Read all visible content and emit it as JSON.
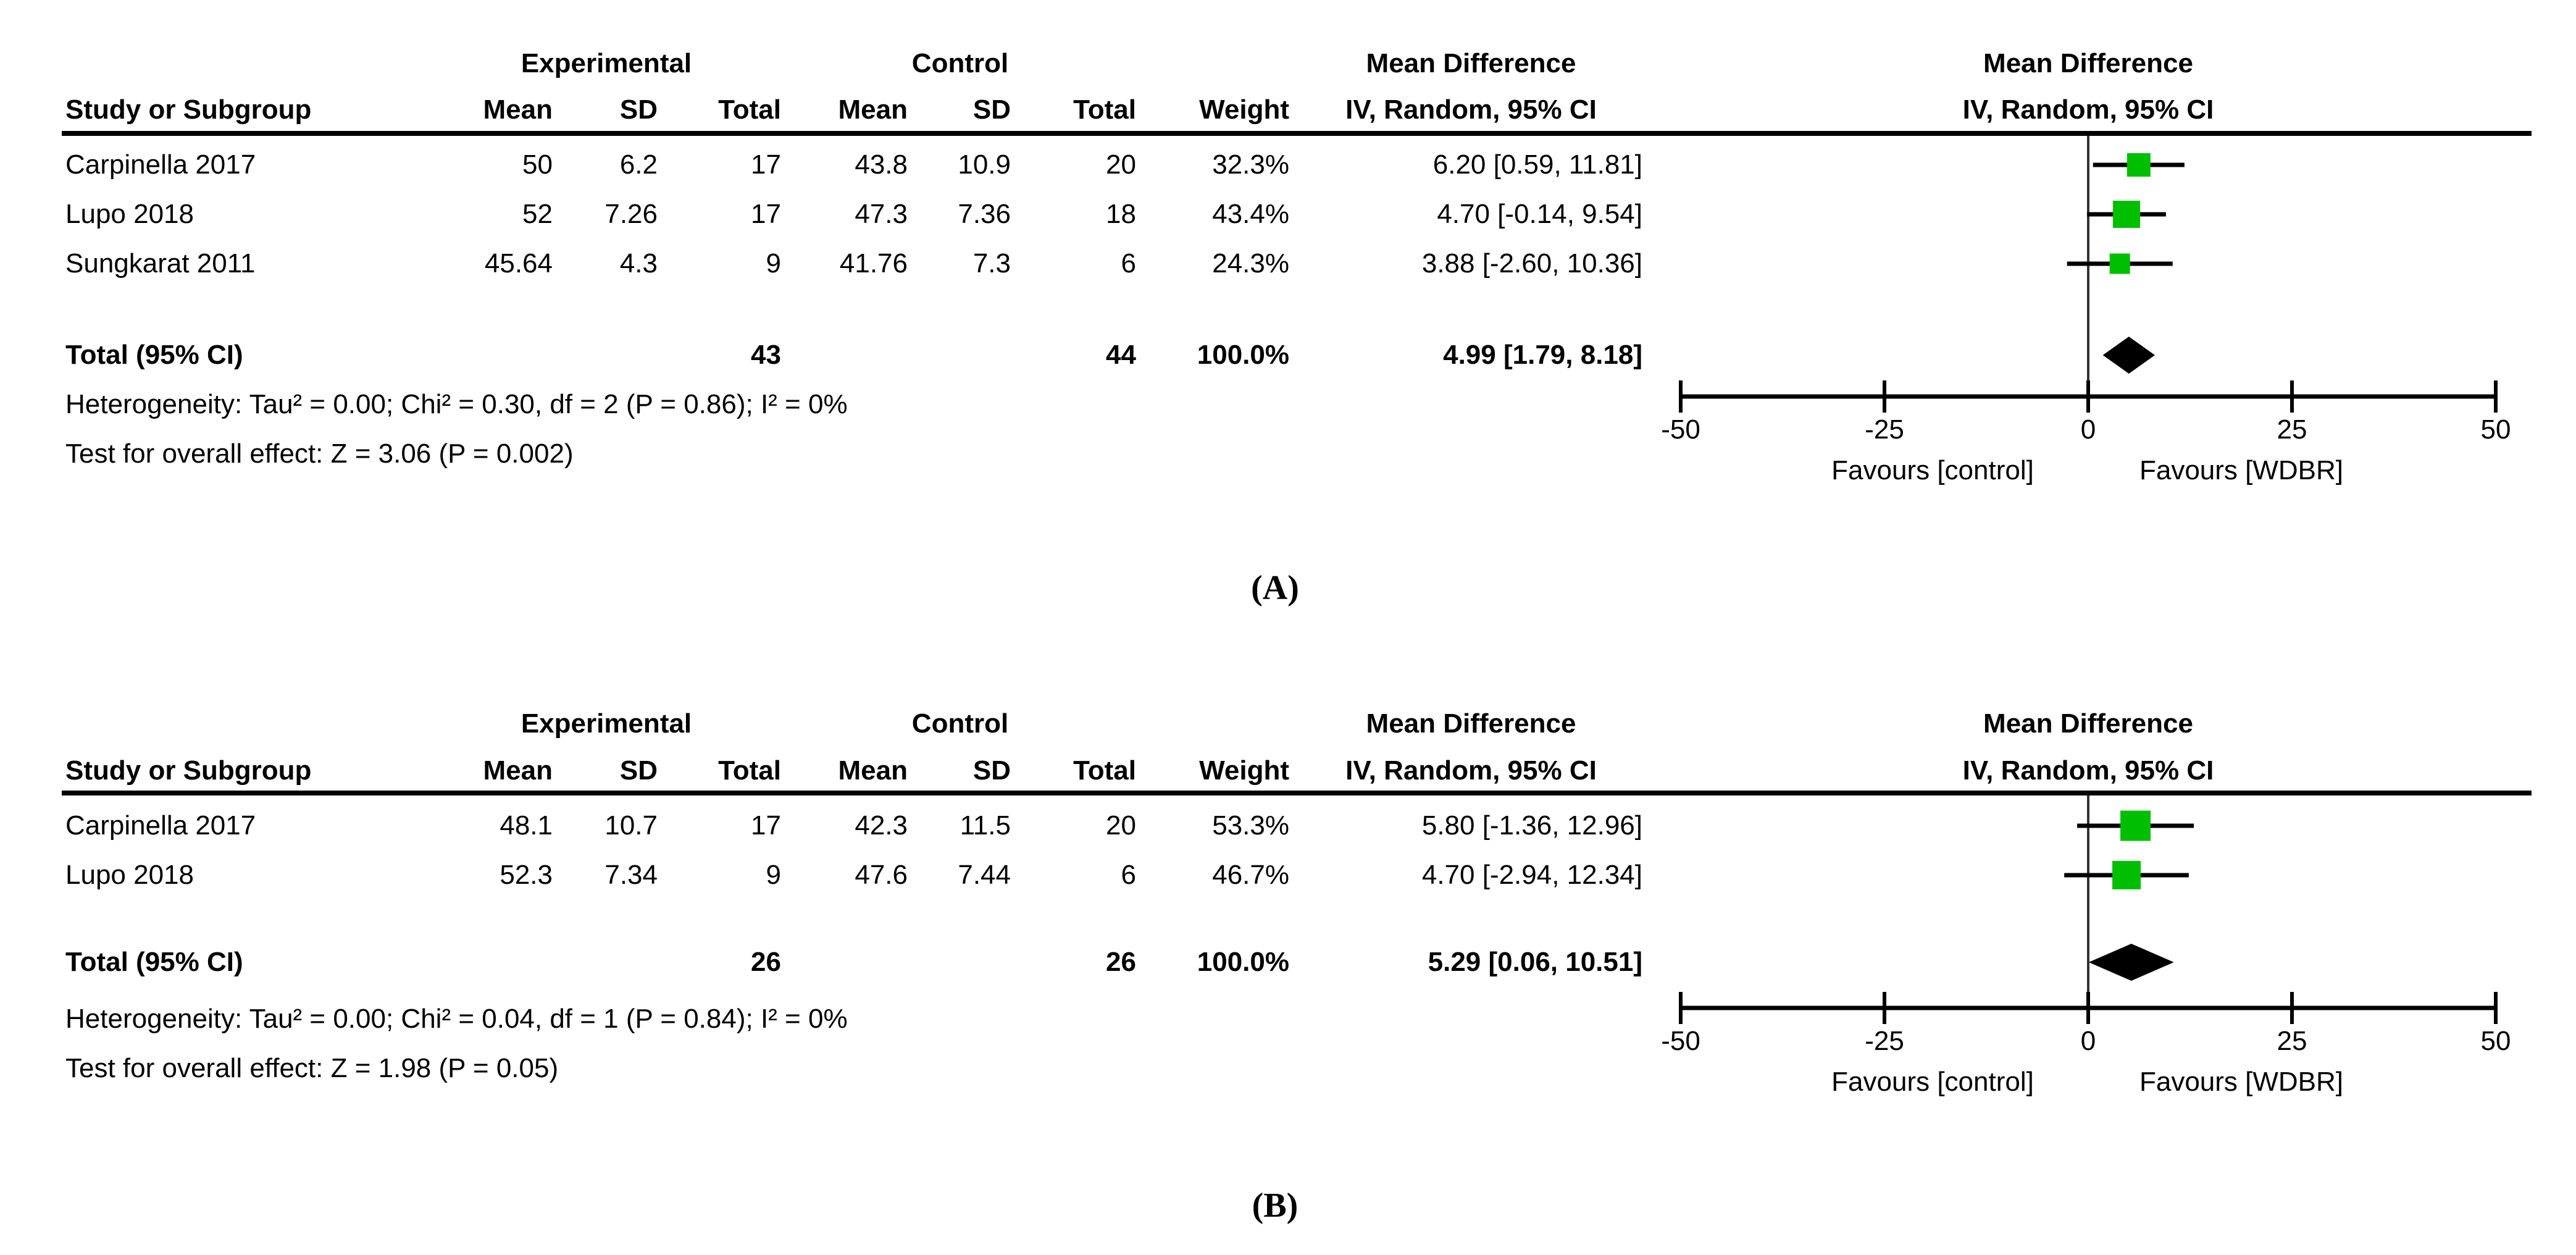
{
  "colors": {
    "square_green": "#00bf00",
    "diamond_black": "#000000",
    "line_black": "#000000",
    "background": "#ffffff"
  },
  "chart_data": [
    {
      "type": "scatter",
      "subtype": "forest_plot",
      "panel_label": "(A)",
      "headers": {
        "group_experimental": "Experimental",
        "group_control": "Control",
        "group_md": "Mean Difference",
        "plot_md": "Mean Difference",
        "study": "Study or Subgroup",
        "mean1": "Mean",
        "sd1": "SD",
        "total1": "Total",
        "mean2": "Mean",
        "sd2": "SD",
        "total2": "Total",
        "weight": "Weight",
        "ci": "IV, Random, 95% CI",
        "plot_ci": "IV, Random, 95% CI"
      },
      "studies": [
        {
          "name": "Carpinella 2017",
          "exp_mean": "50",
          "exp_sd": "6.2",
          "exp_total": "17",
          "ctl_mean": "43.8",
          "ctl_sd": "10.9",
          "ctl_total": "20",
          "weight": "32.3%",
          "weight_value": 32.3,
          "ci_text": "6.20 [0.59, 11.81]",
          "md": 6.2,
          "ci_low": 0.59,
          "ci_high": 11.81
        },
        {
          "name": "Lupo 2018",
          "exp_mean": "52",
          "exp_sd": "7.26",
          "exp_total": "17",
          "ctl_mean": "47.3",
          "ctl_sd": "7.36",
          "ctl_total": "18",
          "weight": "43.4%",
          "weight_value": 43.4,
          "ci_text": "4.70 [-0.14, 9.54]",
          "md": 4.7,
          "ci_low": -0.14,
          "ci_high": 9.54
        },
        {
          "name": "Sungkarat 2011",
          "exp_mean": "45.64",
          "exp_sd": "4.3",
          "exp_total": "9",
          "ctl_mean": "41.76",
          "ctl_sd": "7.3",
          "ctl_total": "6",
          "weight": "24.3%",
          "weight_value": 24.3,
          "ci_text": "3.88 [-2.60, 10.36]",
          "md": 3.88,
          "ci_low": -2.6,
          "ci_high": 10.36
        }
      ],
      "total": {
        "label": "Total (95% CI)",
        "exp_total": "43",
        "ctl_total": "44",
        "weight": "100.0%",
        "ci_text": "4.99 [1.79, 8.18]",
        "md": 4.99,
        "ci_low": 1.79,
        "ci_high": 8.18
      },
      "heterogeneity": "Heterogeneity: Tau² = 0.00; Chi² = 0.30, df = 2 (P = 0.86); I² = 0%",
      "overall_effect": "Test for overall effect: Z = 3.06 (P = 0.002)",
      "axis": {
        "min": -50,
        "max": 50,
        "ticks": [
          -50,
          -25,
          0,
          25,
          50
        ]
      },
      "favours_left": "Favours [control]",
      "favours_right": "Favours [WDBR]"
    },
    {
      "type": "scatter",
      "subtype": "forest_plot",
      "panel_label": "(B)",
      "headers": {
        "group_experimental": "Experimental",
        "group_control": "Control",
        "group_md": "Mean Difference",
        "plot_md": "Mean Difference",
        "study": "Study or Subgroup",
        "mean1": "Mean",
        "sd1": "SD",
        "total1": "Total",
        "mean2": "Mean",
        "sd2": "SD",
        "total2": "Total",
        "weight": "Weight",
        "ci": "IV, Random, 95% CI",
        "plot_ci": "IV, Random, 95% CI"
      },
      "studies": [
        {
          "name": "Carpinella 2017",
          "exp_mean": "48.1",
          "exp_sd": "10.7",
          "exp_total": "17",
          "ctl_mean": "42.3",
          "ctl_sd": "11.5",
          "ctl_total": "20",
          "weight": "53.3%",
          "weight_value": 53.3,
          "ci_text": "5.80 [-1.36, 12.96]",
          "md": 5.8,
          "ci_low": -1.36,
          "ci_high": 12.96
        },
        {
          "name": "Lupo 2018",
          "exp_mean": "52.3",
          "exp_sd": "7.34",
          "exp_total": "9",
          "ctl_mean": "47.6",
          "ctl_sd": "7.44",
          "ctl_total": "6",
          "weight": "46.7%",
          "weight_value": 46.7,
          "ci_text": "4.70 [-2.94, 12.34]",
          "md": 4.7,
          "ci_low": -2.94,
          "ci_high": 12.34
        }
      ],
      "total": {
        "label": "Total (95% CI)",
        "exp_total": "26",
        "ctl_total": "26",
        "weight": "100.0%",
        "ci_text": "5.29 [0.06, 10.51]",
        "md": 5.29,
        "ci_low": 0.06,
        "ci_high": 10.51
      },
      "heterogeneity": "Heterogeneity: Tau² = 0.00; Chi² = 0.04, df = 1 (P = 0.84); I² = 0%",
      "overall_effect": "Test for overall effect: Z = 1.98 (P = 0.05)",
      "axis": {
        "min": -50,
        "max": 50,
        "ticks": [
          -50,
          -25,
          0,
          25,
          50
        ]
      },
      "favours_left": "Favours [control]",
      "favours_right": "Favours [WDBR]"
    }
  ]
}
